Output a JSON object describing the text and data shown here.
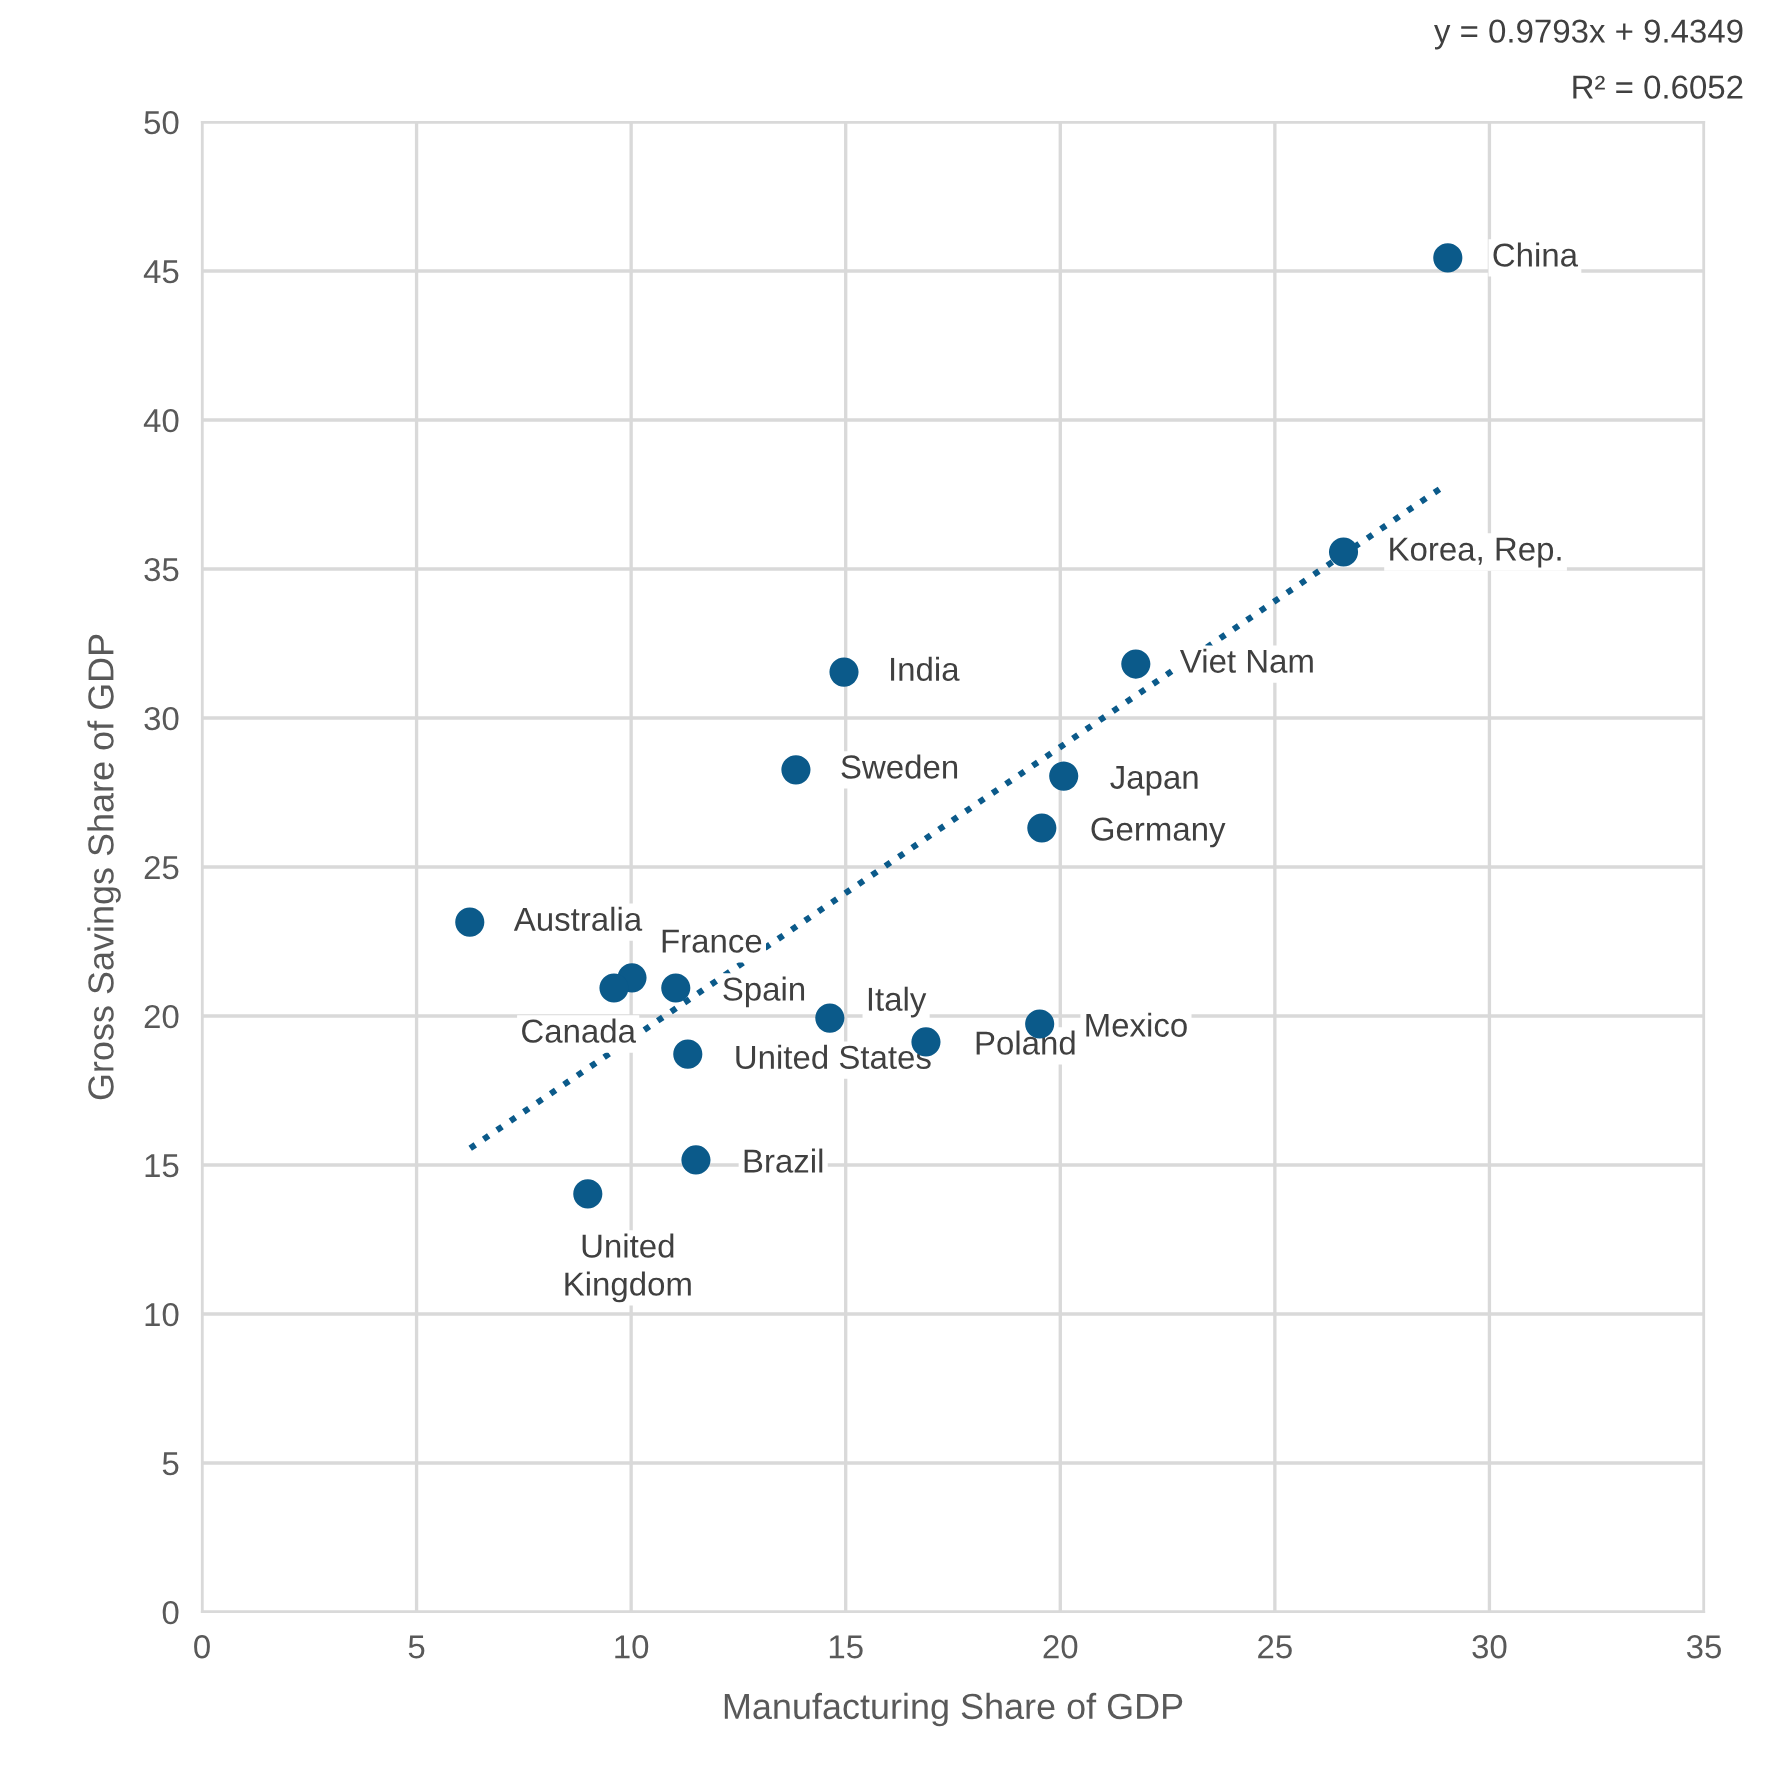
{
  "chart_data": {
    "type": "scatter",
    "xlabel": "Manufacturing Share of GDP",
    "ylabel": "Gross Savings Share of GDP",
    "xlim": [
      0,
      35
    ],
    "xticks": [
      0,
      5,
      10,
      15,
      20,
      25,
      30,
      35
    ],
    "ylim": [
      0,
      50
    ],
    "yticks": [
      0,
      5,
      10,
      15,
      20,
      25,
      30,
      35,
      40,
      45,
      50
    ],
    "grid": true,
    "series": [
      {
        "type": "scatter",
        "marker": "circle",
        "color": "#0b5a8a",
        "x": [
          29.03,
          26.6,
          21.76,
          14.96,
          13.84,
          20.08,
          19.57,
          6.24,
          10.02,
          9.6,
          11.04,
          14.63,
          16.87,
          19.52,
          11.32,
          11.51,
          8.99
        ],
        "values": [
          45.44,
          35.57,
          31.81,
          31.54,
          28.26,
          28.05,
          26.31,
          23.15,
          21.28,
          20.94,
          20.94,
          19.93,
          19.13,
          19.73,
          18.72,
          15.17,
          14.03
        ]
      },
      {
        "type": "line",
        "color": "#0b5a8a",
        "line_style": "dotted",
        "x": [
          6.25,
          29.0
        ],
        "values": [
          15.56,
          37.84
        ]
      }
    ],
    "annotations": [
      "y = 0.9793x + 9.4349",
      "R² = 0.6052",
      {
        "text": "China",
        "x": 29.03,
        "y": 45.44
      },
      {
        "text": "Korea, Rep.",
        "x": 26.6,
        "y": 35.57
      },
      {
        "text": "Viet Nam",
        "x": 21.76,
        "y": 31.81
      },
      {
        "text": "India",
        "x": 14.96,
        "y": 31.54
      },
      {
        "text": "Sweden",
        "x": 13.84,
        "y": 28.26
      },
      {
        "text": "Japan",
        "x": 20.08,
        "y": 28.05
      },
      {
        "text": "Germany",
        "x": 19.57,
        "y": 26.31
      },
      {
        "text": "Australia",
        "x": 6.24,
        "y": 23.15
      },
      {
        "text": "France",
        "x": 10.02,
        "y": 21.28
      },
      {
        "text": "Canada",
        "x": 9.6,
        "y": 20.94
      },
      {
        "text": "Spain",
        "x": 11.04,
        "y": 20.94
      },
      {
        "text": "Italy",
        "x": 14.63,
        "y": 19.93
      },
      {
        "text": "Poland",
        "x": 16.87,
        "y": 19.13
      },
      {
        "text": "Mexico",
        "x": 19.52,
        "y": 19.73
      },
      {
        "text": "United States",
        "x": 11.32,
        "y": 18.72
      },
      {
        "text": "Brazil",
        "x": 11.51,
        "y": 15.17
      },
      {
        "text": "United\nKingdom",
        "x": 8.99,
        "y": 14.03
      }
    ]
  }
}
